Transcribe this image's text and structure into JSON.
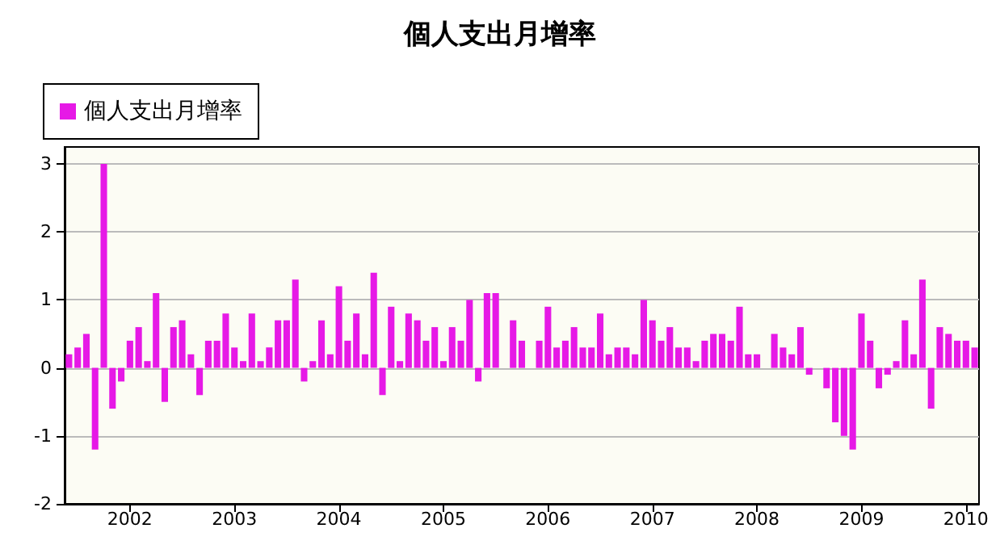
{
  "chart_data": {
    "type": "bar",
    "title": "個人支出月增率",
    "categories": [
      null,
      null,
      null,
      null,
      null,
      null,
      null,
      "2002",
      null,
      null,
      null,
      null,
      null,
      null,
      null,
      null,
      null,
      null,
      null,
      "2003",
      null,
      null,
      null,
      null,
      null,
      null,
      null,
      null,
      null,
      null,
      null,
      "2004",
      null,
      null,
      null,
      null,
      null,
      null,
      null,
      null,
      null,
      null,
      null,
      "2005",
      null,
      null,
      null,
      null,
      null,
      null,
      null,
      null,
      null,
      null,
      null,
      "2006",
      null,
      null,
      null,
      null,
      null,
      null,
      null,
      null,
      null,
      null,
      null,
      "2007",
      null,
      null,
      null,
      null,
      null,
      null,
      null,
      null,
      null,
      null,
      null,
      "2008",
      null,
      null,
      null,
      null,
      null,
      null,
      null,
      null,
      null,
      null,
      null,
      "2009",
      null,
      null,
      null,
      null,
      null,
      null,
      null,
      null,
      null,
      null,
      null,
      "2010",
      null
    ],
    "series": [
      {
        "name": "個人支出月增率",
        "color": "#e619e6",
        "values": [
          0.2,
          0.3,
          0.5,
          -1.2,
          3.0,
          -0.6,
          -0.2,
          0.4,
          0.6,
          0.1,
          1.1,
          -0.5,
          0.6,
          0.7,
          0.2,
          -0.4,
          0.4,
          0.4,
          0.8,
          0.3,
          0.1,
          0.8,
          0.1,
          0.3,
          0.7,
          0.7,
          1.3,
          -0.2,
          0.1,
          0.7,
          0.2,
          1.2,
          0.4,
          0.8,
          0.2,
          1.4,
          -0.4,
          0.9,
          0.1,
          0.8,
          0.7,
          0.4,
          0.6,
          0.1,
          0.6,
          0.4,
          1.0,
          -0.2,
          1.1,
          1.1,
          0,
          0.7,
          0.4,
          0,
          0.4,
          0.9,
          0.3,
          0.4,
          0.6,
          0.3,
          0.3,
          0.8,
          0.2,
          0.3,
          0.3,
          0.2,
          1.0,
          0.7,
          0.4,
          0.6,
          0.3,
          0.3,
          0.1,
          0.4,
          0.5,
          0.5,
          0.4,
          0.9,
          0.2,
          0.2,
          0,
          0.5,
          0.3,
          0.2,
          0.6,
          -0.1,
          0,
          -0.3,
          -0.8,
          -1.0,
          -1.2,
          0.8,
          0.4,
          -0.3,
          -0.1,
          0.1,
          0.7,
          0.2,
          1.3,
          -0.6,
          0.6,
          0.5,
          0.4,
          0.4,
          0.3
        ]
      }
    ],
    "ylim": [
      -2,
      3.25
    ],
    "yticks": [
      -2,
      -1,
      0,
      1,
      2,
      3
    ],
    "grid": "y",
    "legend": "top left"
  }
}
